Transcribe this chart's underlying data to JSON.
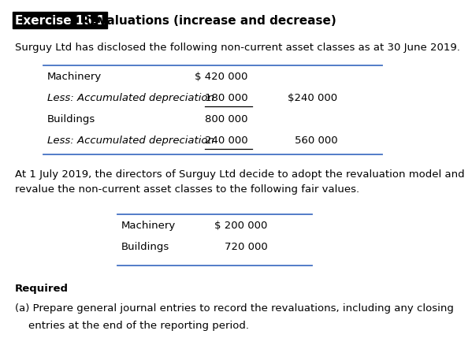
{
  "title_box_text": "Exercise 15.1",
  "title_rest": " Revaluations (increase and decrease)",
  "para1": "Surguy Ltd has disclosed the following non-current asset classes as at 30 June 2019.",
  "table1_rows": [
    [
      "Machinery",
      "$ 420 000",
      ""
    ],
    [
      "Less: Accumulated depreciation",
      "180 000",
      "$240 000"
    ],
    [
      "Buildings",
      "800 000",
      ""
    ],
    [
      "Less: Accumulated depreciation",
      "240 000",
      "560 000"
    ]
  ],
  "table1_italic": [
    false,
    true,
    false,
    true
  ],
  "para2": "At 1 July 2019, the directors of Surguy Ltd decide to adopt the revaluation model and\nrevalue the non-current asset classes to the following fair values.",
  "table2_rows": [
    [
      "Machinery",
      "$ 200 000"
    ],
    [
      "Buildings",
      "720 000"
    ]
  ],
  "required_label": "Required",
  "required_body_line1": "(a) Prepare general journal entries to record the revaluations, including any closing",
  "required_body_line2": "    entries at the end of the reporting period.",
  "bg_color": "#ffffff",
  "text_color": "#000000",
  "line_color": "#4472c4",
  "underline_color": "#000000",
  "font_size_title": 11,
  "font_size_body": 9.5
}
